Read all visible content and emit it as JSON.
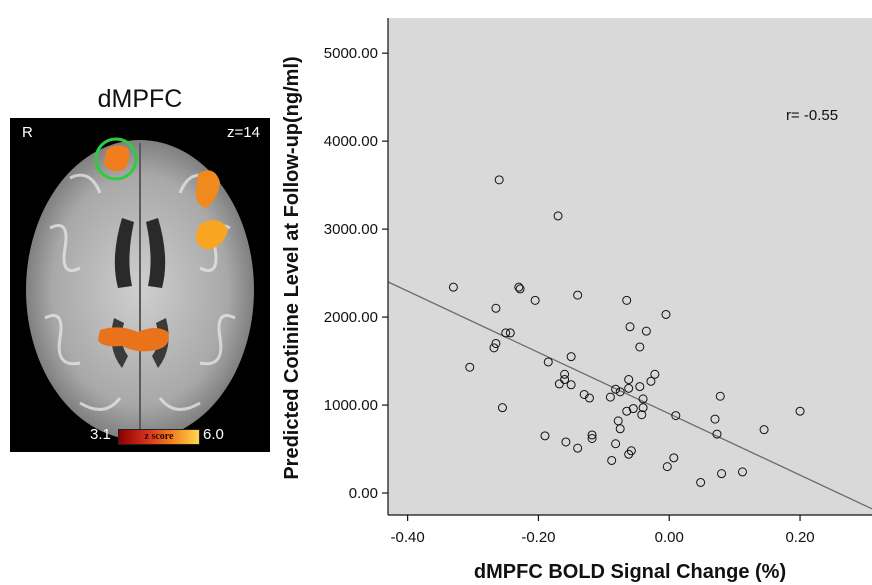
{
  "brain_panel": {
    "title": "dMPFC",
    "hemisphere_label": "R",
    "slice_label": "z=14",
    "colorbar": {
      "min_label": "3.1",
      "max_label": "6.0",
      "label": "z score"
    },
    "activation_color": "#f07d1e",
    "roi_circle_color": "#2ecc40"
  },
  "chart_data": {
    "type": "scatter",
    "xlabel": "dMPFC BOLD Signal Change (%)",
    "ylabel": "Predicted Cotinine Level at Follow-up(ng/ml)",
    "xlim": [
      -0.43,
      0.31
    ],
    "ylim": [
      -250,
      5400
    ],
    "x_ticks": [
      -0.4,
      -0.2,
      0.0,
      0.2
    ],
    "x_tick_labels": [
      "-0.40",
      "-0.20",
      "0.00",
      "0.20"
    ],
    "y_ticks": [
      0,
      1000,
      2000,
      3000,
      4000,
      5000
    ],
    "y_tick_labels": [
      "0.00",
      "1000.00",
      "2000.00",
      "3000.00",
      "4000.00",
      "5000.00"
    ],
    "annotation": "r= -0.55",
    "background_color": "#d9d9d9",
    "marker": "open-circle",
    "fit_line": {
      "x": [
        -0.43,
        0.31
      ],
      "y": [
        2400,
        -180
      ]
    },
    "points": [
      {
        "x": -0.26,
        "y": 3560
      },
      {
        "x": -0.17,
        "y": 3150
      },
      {
        "x": -0.33,
        "y": 2340
      },
      {
        "x": -0.23,
        "y": 2340
      },
      {
        "x": -0.228,
        "y": 2320
      },
      {
        "x": -0.14,
        "y": 2250
      },
      {
        "x": -0.205,
        "y": 2190
      },
      {
        "x": -0.065,
        "y": 2190
      },
      {
        "x": -0.265,
        "y": 2100
      },
      {
        "x": -0.005,
        "y": 2030
      },
      {
        "x": -0.06,
        "y": 1890
      },
      {
        "x": -0.035,
        "y": 1840
      },
      {
        "x": -0.25,
        "y": 1820
      },
      {
        "x": -0.243,
        "y": 1820
      },
      {
        "x": -0.265,
        "y": 1700
      },
      {
        "x": -0.268,
        "y": 1650
      },
      {
        "x": -0.045,
        "y": 1660
      },
      {
        "x": -0.15,
        "y": 1550
      },
      {
        "x": -0.185,
        "y": 1490
      },
      {
        "x": -0.305,
        "y": 1430
      },
      {
        "x": -0.16,
        "y": 1350
      },
      {
        "x": -0.022,
        "y": 1350
      },
      {
        "x": -0.16,
        "y": 1290
      },
      {
        "x": -0.062,
        "y": 1290
      },
      {
        "x": -0.028,
        "y": 1270
      },
      {
        "x": -0.168,
        "y": 1240
      },
      {
        "x": -0.15,
        "y": 1230
      },
      {
        "x": -0.045,
        "y": 1210
      },
      {
        "x": -0.062,
        "y": 1190
      },
      {
        "x": -0.082,
        "y": 1180
      },
      {
        "x": -0.075,
        "y": 1150
      },
      {
        "x": -0.13,
        "y": 1120
      },
      {
        "x": -0.122,
        "y": 1080
      },
      {
        "x": -0.09,
        "y": 1090
      },
      {
        "x": 0.078,
        "y": 1100
      },
      {
        "x": -0.04,
        "y": 1070
      },
      {
        "x": -0.04,
        "y": 970
      },
      {
        "x": -0.255,
        "y": 970
      },
      {
        "x": -0.055,
        "y": 960
      },
      {
        "x": -0.065,
        "y": 930
      },
      {
        "x": -0.042,
        "y": 890
      },
      {
        "x": 0.01,
        "y": 880
      },
      {
        "x": 0.2,
        "y": 930
      },
      {
        "x": 0.07,
        "y": 840
      },
      {
        "x": -0.078,
        "y": 820
      },
      {
        "x": -0.075,
        "y": 730
      },
      {
        "x": 0.145,
        "y": 720
      },
      {
        "x": 0.073,
        "y": 670
      },
      {
        "x": -0.118,
        "y": 660
      },
      {
        "x": -0.19,
        "y": 650
      },
      {
        "x": -0.118,
        "y": 620
      },
      {
        "x": -0.158,
        "y": 580
      },
      {
        "x": -0.082,
        "y": 560
      },
      {
        "x": -0.14,
        "y": 510
      },
      {
        "x": -0.058,
        "y": 480
      },
      {
        "x": -0.062,
        "y": 440
      },
      {
        "x": 0.007,
        "y": 400
      },
      {
        "x": -0.088,
        "y": 370
      },
      {
        "x": -0.003,
        "y": 300
      },
      {
        "x": 0.112,
        "y": 240
      },
      {
        "x": 0.08,
        "y": 220
      },
      {
        "x": 0.048,
        "y": 120
      }
    ]
  }
}
